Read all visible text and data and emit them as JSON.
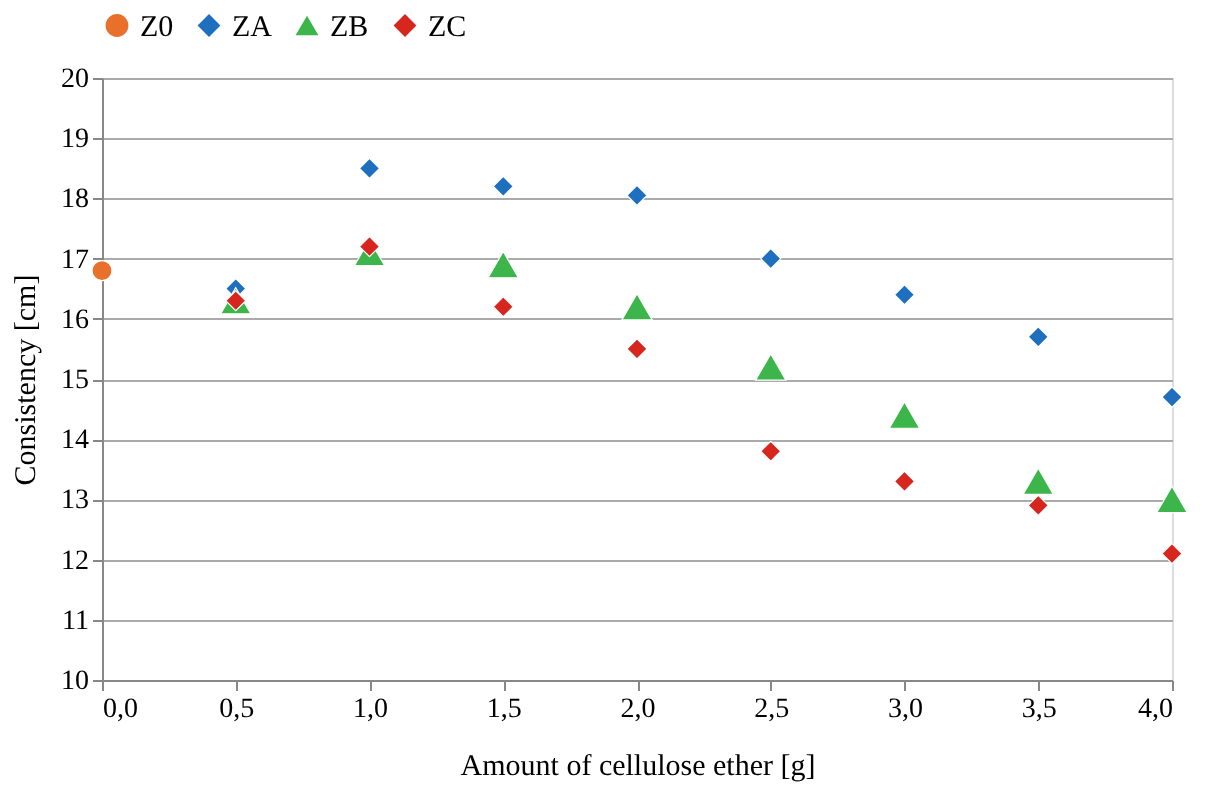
{
  "chart_data": {
    "type": "scatter",
    "xlabel": "Amount of cellulose ether [g]",
    "ylabel": "Consistency [cm]",
    "xlim": [
      0,
      4
    ],
    "xticks": [
      {
        "value": 0,
        "label": "0,0"
      },
      {
        "value": 0.5,
        "label": "0,5"
      },
      {
        "value": 1,
        "label": "1,0"
      },
      {
        "value": 1.5,
        "label": "1,5"
      },
      {
        "value": 2,
        "label": "2,0"
      },
      {
        "value": 2.5,
        "label": "2,5"
      },
      {
        "value": 3,
        "label": "3,0"
      },
      {
        "value": 3.5,
        "label": "3,5"
      },
      {
        "value": 4,
        "label": "4,0"
      }
    ],
    "ylim": [
      10,
      20
    ],
    "yticks": [
      10,
      11,
      12,
      13,
      14,
      15,
      16,
      17,
      18,
      19,
      20
    ],
    "grid": "y",
    "legend": "top",
    "series": [
      {
        "name": "Z0",
        "color": "#e8702a",
        "marker": "circle",
        "x": [
          0
        ],
        "values": [
          16.8
        ]
      },
      {
        "name": "ZA",
        "color": "#1f6fbf",
        "marker": "diamond",
        "x": [
          0.5,
          1,
          1.5,
          2,
          2.5,
          3,
          3.5,
          4
        ],
        "values": [
          16.5,
          18.5,
          18.2,
          18.05,
          17.0,
          16.4,
          15.7,
          14.7
        ]
      },
      {
        "name": "ZB",
        "color": "#3cb54a",
        "marker": "triangle",
        "x": [
          0.5,
          1,
          1.5,
          2,
          2.5,
          3,
          3.5,
          4
        ],
        "values": [
          16.3,
          17.1,
          16.9,
          16.2,
          15.2,
          14.4,
          13.3,
          13.0
        ]
      },
      {
        "name": "ZC",
        "color": "#d7261e",
        "marker": "diamond",
        "x": [
          0.5,
          1,
          1.5,
          2,
          2.5,
          3,
          3.5,
          4
        ],
        "values": [
          16.3,
          17.2,
          16.2,
          15.5,
          13.8,
          13.3,
          12.9,
          12.1
        ]
      }
    ]
  }
}
